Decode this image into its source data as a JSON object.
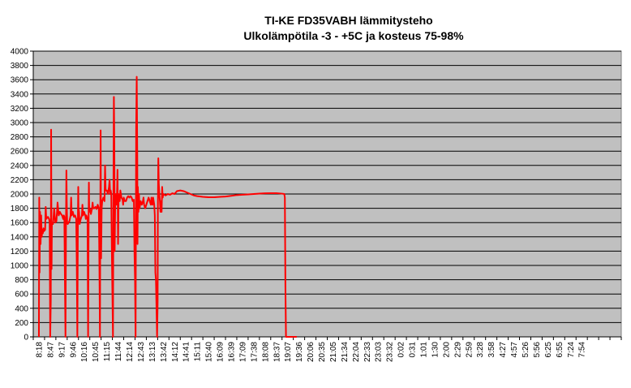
{
  "chart_data": {
    "type": "line",
    "title": "TI-KE FD35VABH lämmitysteho",
    "subtitle": "Ulkolämpötila  -3 - +5C ja kosteus 75-98%",
    "xlabel": "",
    "ylabel": "",
    "ylim": [
      0,
      4000
    ],
    "yticks": [
      0,
      200,
      400,
      600,
      800,
      1000,
      1200,
      1400,
      1600,
      1800,
      2000,
      2200,
      2400,
      2600,
      2800,
      3000,
      3200,
      3400,
      3600,
      3800,
      4000
    ],
    "categories": [
      "8:18",
      "8:47",
      "9:17",
      "9:46",
      "10:16",
      "10:45",
      "11:15",
      "11:44",
      "12:14",
      "12:43",
      "13:13",
      "13:42",
      "14:12",
      "14:41",
      "15:11",
      "15:40",
      "16:09",
      "16:39",
      "17:09",
      "17:38",
      "18:08",
      "18:37",
      "19:07",
      "19:36",
      "20:06",
      "20:35",
      "21:05",
      "21:34",
      "22:04",
      "22:33",
      "23:03",
      "23:32",
      "0:02",
      "0:31",
      "1:01",
      "1:30",
      "2:00",
      "2:29",
      "2:59",
      "3:28",
      "3:58",
      "4:27",
      "4:57",
      "5:26",
      "5:56",
      "6:25",
      "6:55",
      "7:24",
      "7:54"
    ],
    "total_slots": 52,
    "grid": true,
    "legend": "none",
    "colors": {
      "plot_bg": "#c0c0c0",
      "line": "#ff0000",
      "grid": "#000000"
    },
    "series": [
      {
        "points": [
          [
            0.0,
            0
          ],
          [
            0.03,
            1950
          ],
          [
            0.06,
            900
          ],
          [
            0.1,
            1750
          ],
          [
            0.15,
            1300
          ],
          [
            0.2,
            1700
          ],
          [
            0.25,
            1400
          ],
          [
            0.3,
            1500
          ],
          [
            0.35,
            1450
          ],
          [
            0.4,
            1520
          ],
          [
            0.45,
            1480
          ],
          [
            0.55,
            1500
          ],
          [
            0.6,
            1820
          ],
          [
            0.65,
            1650
          ],
          [
            0.8,
            1680
          ],
          [
            0.9,
            1650
          ],
          [
            0.95,
            1600
          ],
          [
            1.0,
            0
          ],
          [
            1.05,
            500
          ],
          [
            1.08,
            2900
          ],
          [
            1.12,
            950
          ],
          [
            1.15,
            1600
          ],
          [
            1.25,
            1580
          ],
          [
            1.35,
            1800
          ],
          [
            1.45,
            1600
          ],
          [
            1.55,
            1620
          ],
          [
            1.65,
            1880
          ],
          [
            1.75,
            1700
          ],
          [
            1.85,
            1750
          ],
          [
            1.95,
            1720
          ],
          [
            2.05,
            1700
          ],
          [
            2.15,
            1650
          ],
          [
            2.2,
            1700
          ],
          [
            2.25,
            1680
          ],
          [
            2.3,
            800
          ],
          [
            2.35,
            0
          ],
          [
            2.4,
            1700
          ],
          [
            2.43,
            2330
          ],
          [
            2.47,
            1800
          ],
          [
            2.5,
            1600
          ],
          [
            2.55,
            1580
          ],
          [
            2.7,
            1620
          ],
          [
            2.8,
            1700
          ],
          [
            2.85,
            1950
          ],
          [
            2.9,
            1700
          ],
          [
            3.0,
            1750
          ],
          [
            3.1,
            1680
          ],
          [
            3.2,
            1700
          ],
          [
            3.3,
            1650
          ],
          [
            3.35,
            1000
          ],
          [
            3.4,
            0
          ],
          [
            3.45,
            1700
          ],
          [
            3.48,
            2100
          ],
          [
            3.5,
            1800
          ],
          [
            3.55,
            1750
          ],
          [
            3.6,
            1580
          ],
          [
            3.7,
            1650
          ],
          [
            3.8,
            1700
          ],
          [
            3.85,
            1850
          ],
          [
            3.9,
            1700
          ],
          [
            4.0,
            1750
          ],
          [
            4.1,
            1700
          ],
          [
            4.15,
            1650
          ],
          [
            4.2,
            1700
          ],
          [
            4.3,
            1650
          ],
          [
            4.35,
            0
          ],
          [
            4.4,
            1800
          ],
          [
            4.42,
            2160
          ],
          [
            4.45,
            1750
          ],
          [
            4.5,
            1800
          ],
          [
            4.6,
            1720
          ],
          [
            4.7,
            1800
          ],
          [
            4.75,
            1880
          ],
          [
            4.8,
            1800
          ],
          [
            4.9,
            1800
          ],
          [
            5.0,
            1820
          ],
          [
            5.1,
            1790
          ],
          [
            5.2,
            1850
          ],
          [
            5.3,
            1800
          ],
          [
            5.35,
            1000
          ],
          [
            5.4,
            0
          ],
          [
            5.43,
            1800
          ],
          [
            5.46,
            2890
          ],
          [
            5.5,
            1100
          ],
          [
            5.55,
            1800
          ],
          [
            5.6,
            1900
          ],
          [
            5.7,
            1950
          ],
          [
            5.8,
            1900
          ],
          [
            5.85,
            2400
          ],
          [
            5.9,
            2050
          ],
          [
            6.0,
            2050
          ],
          [
            6.1,
            2000
          ],
          [
            6.2,
            2100
          ],
          [
            6.25,
            2200
          ],
          [
            6.3,
            2000
          ],
          [
            6.35,
            2050
          ],
          [
            6.4,
            2000
          ],
          [
            6.45,
            1200
          ],
          [
            6.5,
            600
          ],
          [
            6.55,
            0
          ],
          [
            6.6,
            2400
          ],
          [
            6.63,
            3360
          ],
          [
            6.67,
            2700
          ],
          [
            6.7,
            1200
          ],
          [
            6.75,
            1900
          ],
          [
            6.8,
            2000
          ],
          [
            6.85,
            1850
          ],
          [
            6.9,
            1950
          ],
          [
            6.95,
            2340
          ],
          [
            7.0,
            1300
          ],
          [
            7.05,
            2000
          ],
          [
            7.15,
            1900
          ],
          [
            7.2,
            2050
          ],
          [
            7.3,
            1950
          ],
          [
            7.4,
            1920
          ],
          [
            7.45,
            1850
          ],
          [
            7.5,
            1950
          ],
          [
            7.6,
            1900
          ],
          [
            7.7,
            1900
          ],
          [
            7.8,
            1950
          ],
          [
            7.9,
            1970
          ],
          [
            8.0,
            1950
          ],
          [
            8.1,
            1970
          ],
          [
            8.2,
            1950
          ],
          [
            8.3,
            1900
          ],
          [
            8.4,
            1920
          ],
          [
            8.45,
            1200
          ],
          [
            8.5,
            800
          ],
          [
            8.55,
            0
          ],
          [
            8.6,
            2900
          ],
          [
            8.65,
            3640
          ],
          [
            8.7,
            2500
          ],
          [
            8.72,
            1300
          ],
          [
            8.75,
            2100
          ],
          [
            8.8,
            1750
          ],
          [
            8.85,
            2000
          ],
          [
            8.9,
            1800
          ],
          [
            8.95,
            1850
          ],
          [
            9.0,
            1900
          ],
          [
            9.1,
            1850
          ],
          [
            9.2,
            1900
          ],
          [
            9.25,
            1950
          ],
          [
            9.3,
            1850
          ],
          [
            9.4,
            1800
          ],
          [
            9.5,
            1850
          ],
          [
            9.6,
            1900
          ],
          [
            9.7,
            1950
          ],
          [
            9.8,
            1900
          ],
          [
            9.9,
            1850
          ],
          [
            9.95,
            1950
          ],
          [
            10.0,
            1900
          ],
          [
            10.05,
            1850
          ],
          [
            10.1,
            1950
          ],
          [
            10.15,
            1900
          ],
          [
            10.2,
            1850
          ],
          [
            10.25,
            1700
          ],
          [
            10.3,
            900
          ],
          [
            10.35,
            800
          ],
          [
            10.4,
            400
          ],
          [
            10.45,
            0
          ],
          [
            10.5,
            500
          ],
          [
            10.52,
            1800
          ],
          [
            10.56,
            2500
          ],
          [
            10.6,
            2150
          ],
          [
            10.65,
            2000
          ],
          [
            10.7,
            1900
          ],
          [
            10.75,
            1750
          ],
          [
            10.8,
            1900
          ],
          [
            10.85,
            1750
          ],
          [
            10.9,
            2100
          ],
          [
            10.95,
            1950
          ],
          [
            11.0,
            2000
          ],
          [
            11.2,
            1980
          ],
          [
            11.4,
            2000
          ],
          [
            11.6,
            1990
          ],
          [
            11.8,
            2010
          ],
          [
            12.0,
            2000
          ],
          [
            12.2,
            2040
          ],
          [
            12.5,
            2050
          ],
          [
            12.8,
            2040
          ],
          [
            13.1,
            2020
          ],
          [
            13.4,
            2000
          ],
          [
            13.7,
            1980
          ],
          [
            14.0,
            1970
          ],
          [
            14.5,
            1960
          ],
          [
            15.0,
            1955
          ],
          [
            15.5,
            1955
          ],
          [
            16.0,
            1960
          ],
          [
            16.5,
            1965
          ],
          [
            17.0,
            1975
          ],
          [
            17.5,
            1985
          ],
          [
            18.0,
            1990
          ],
          [
            18.5,
            1995
          ],
          [
            19.0,
            2000
          ],
          [
            19.5,
            2005
          ],
          [
            20.0,
            2010
          ],
          [
            20.5,
            2012
          ],
          [
            21.0,
            2012
          ],
          [
            21.5,
            2005
          ],
          [
            21.7,
            2000
          ],
          [
            21.75,
            1950
          ],
          [
            21.8,
            700
          ],
          [
            21.85,
            0
          ],
          [
            22.8,
            0
          ]
        ]
      }
    ]
  }
}
